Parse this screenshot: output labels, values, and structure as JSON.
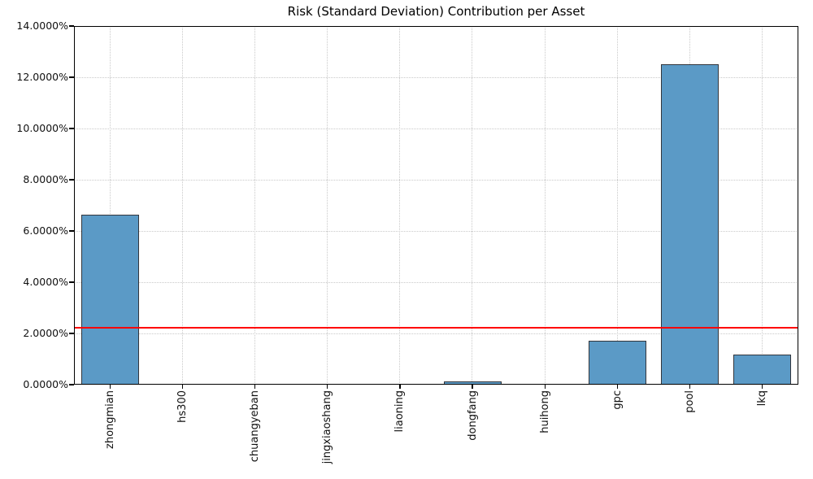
{
  "figure": {
    "background": "#ffffff"
  },
  "chart_data": {
    "type": "bar",
    "title": "Risk (Standard Deviation) Contribution per Asset",
    "categories": [
      "zhongmian",
      "hs300",
      "chuangyeban",
      "jingxiaoshang",
      "liaoning",
      "dongfang",
      "huihong",
      "gpc",
      "pool",
      "lkq"
    ],
    "values_pct": [
      6.64,
      0.01,
      0.01,
      0.01,
      0.02,
      0.12,
      0.02,
      1.71,
      12.52,
      1.16
    ],
    "ylim": [
      0,
      14
    ],
    "ytick_step": 2,
    "ytick_labels": [
      "0.0000%",
      "2.0000%",
      "4.0000%",
      "6.0000%",
      "8.0000%",
      "10.0000%",
      "12.0000%",
      "14.0000%"
    ],
    "xtick_rotation_deg": 90,
    "reference_line": {
      "value_pct": 2.22,
      "color": "#ff0000"
    },
    "grid": {
      "style": "dotted",
      "color": "#c9c9c9",
      "horizontal": true,
      "vertical": true
    },
    "bar": {
      "fill": "#5b9ac6",
      "edge": "#33363c"
    },
    "xlabel": "",
    "ylabel": "",
    "legend": null
  }
}
